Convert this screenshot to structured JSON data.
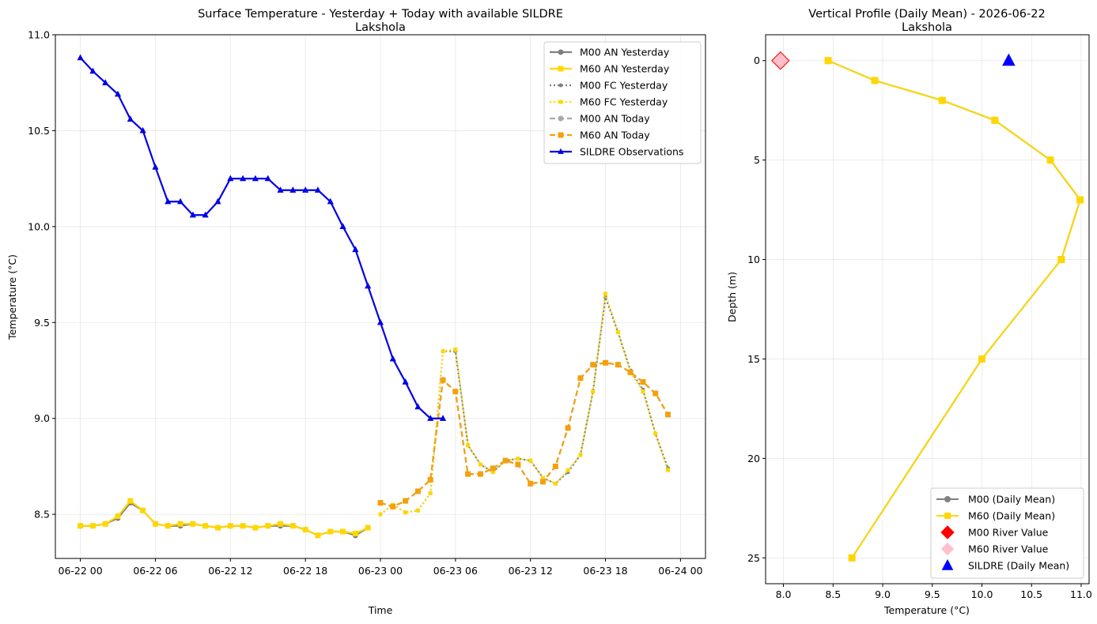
{
  "chart_data": [
    {
      "type": "line",
      "title": "Surface Temperature - Yesterday + Today with available SILDRE",
      "subtitle": "Lakshola",
      "xlabel": "Time",
      "ylabel": "Temperature (°C)",
      "x_unit": "hours since 06-22 00",
      "xlim": [
        -2.0,
        50.0
      ],
      "ylim": [
        8.27,
        11.0
      ],
      "x_ticks": [
        {
          "v": 0,
          "label": "06-22 00"
        },
        {
          "v": 6,
          "label": "06-22 06"
        },
        {
          "v": 12,
          "label": "06-22 12"
        },
        {
          "v": 18,
          "label": "06-22 18"
        },
        {
          "v": 24,
          "label": "06-23 00"
        },
        {
          "v": 30,
          "label": "06-23 06"
        },
        {
          "v": 36,
          "label": "06-23 12"
        },
        {
          "v": 42,
          "label": "06-23 18"
        },
        {
          "v": 48,
          "label": "06-24 00"
        }
      ],
      "y_ticks": [
        8.5,
        9.0,
        9.5,
        10.0,
        10.5,
        11.0
      ],
      "y_tick_labels": [
        "8.5",
        "9.0",
        "9.5",
        "10.0",
        "10.5",
        "11.0"
      ],
      "grid": true,
      "legend_position": "upper right",
      "series": [
        {
          "name": "M00 AN Yesterday",
          "color": "#808080",
          "dash": "solid",
          "marker": "circle",
          "x": [
            0,
            1,
            2,
            3,
            4,
            5,
            6,
            7,
            8,
            9,
            10,
            11,
            12,
            13,
            14,
            15,
            16,
            17,
            18,
            19,
            20,
            21,
            22,
            23
          ],
          "y": [
            8.44,
            8.44,
            8.45,
            8.48,
            8.56,
            8.52,
            8.45,
            8.44,
            8.44,
            8.45,
            8.44,
            8.43,
            8.44,
            8.44,
            8.43,
            8.44,
            8.44,
            8.44,
            8.42,
            8.39,
            8.41,
            8.41,
            8.39,
            8.43
          ]
        },
        {
          "name": "M60 AN Yesterday",
          "color": "#FFD700",
          "dash": "solid",
          "marker": "square",
          "x": [
            0,
            1,
            2,
            3,
            4,
            5,
            6,
            7,
            8,
            9,
            10,
            11,
            12,
            13,
            14,
            15,
            16,
            17,
            18,
            19,
            20,
            21,
            22,
            23
          ],
          "y": [
            8.44,
            8.44,
            8.45,
            8.49,
            8.57,
            8.52,
            8.45,
            8.44,
            8.45,
            8.45,
            8.44,
            8.43,
            8.44,
            8.44,
            8.43,
            8.44,
            8.45,
            8.44,
            8.42,
            8.39,
            8.41,
            8.41,
            8.4,
            8.43
          ]
        },
        {
          "name": "M00 FC Yesterday",
          "color": "#808080",
          "dash": "dotted",
          "marker": "circle",
          "x": [
            24,
            25,
            26,
            27,
            28,
            29,
            30,
            31,
            32,
            33,
            34,
            35,
            36,
            37,
            38,
            39,
            40,
            41,
            42,
            43,
            44,
            45,
            46,
            47
          ],
          "y": [
            8.5,
            8.55,
            8.51,
            8.52,
            8.61,
            9.35,
            9.35,
            8.86,
            8.76,
            8.72,
            8.78,
            8.79,
            8.78,
            8.69,
            8.66,
            8.72,
            8.81,
            9.14,
            9.63,
            9.45,
            9.25,
            9.15,
            8.92,
            8.74
          ]
        },
        {
          "name": "M60 FC Yesterday",
          "color": "#FFD700",
          "dash": "dotted",
          "marker": "square",
          "x": [
            24,
            25,
            26,
            27,
            28,
            29,
            30,
            31,
            32,
            33,
            34,
            35,
            36,
            37,
            38,
            39,
            40,
            41,
            42,
            43,
            44,
            45,
            46,
            47
          ],
          "y": [
            8.5,
            8.55,
            8.51,
            8.52,
            8.61,
            9.35,
            9.36,
            8.86,
            8.76,
            8.72,
            8.78,
            8.79,
            8.78,
            8.69,
            8.66,
            8.73,
            8.81,
            9.14,
            9.65,
            9.45,
            9.24,
            9.14,
            8.92,
            8.73
          ]
        },
        {
          "name": "M00 AN Today",
          "color": "#A9A9A9",
          "dash": "dashed",
          "marker": "circle",
          "x": [
            24,
            25,
            26,
            27,
            28,
            29,
            30,
            31,
            32,
            33,
            34,
            35,
            36,
            37,
            38,
            39,
            40,
            41,
            42,
            43,
            44,
            45,
            46,
            47
          ],
          "y": [
            8.56,
            8.54,
            8.57,
            8.62,
            8.68,
            9.2,
            9.14,
            8.71,
            8.71,
            8.74,
            8.78,
            8.76,
            8.66,
            8.67,
            8.75,
            8.95,
            9.21,
            9.28,
            9.29,
            9.28,
            9.24,
            9.19,
            9.13,
            9.02
          ]
        },
        {
          "name": "M60 AN Today",
          "color": "#F5A00F",
          "dash": "dashed",
          "marker": "square",
          "x": [
            24,
            25,
            26,
            27,
            28,
            29,
            30,
            31,
            32,
            33,
            34,
            35,
            36,
            37,
            38,
            39,
            40,
            41,
            42,
            43,
            44,
            45,
            46,
            47
          ],
          "y": [
            8.56,
            8.54,
            8.57,
            8.62,
            8.68,
            9.2,
            9.14,
            8.71,
            8.71,
            8.74,
            8.78,
            8.76,
            8.66,
            8.67,
            8.75,
            8.95,
            9.21,
            9.28,
            9.29,
            9.28,
            9.24,
            9.19,
            9.13,
            9.02
          ]
        },
        {
          "name": "SILDRE Observations",
          "color": "#0000E6",
          "dash": "solid",
          "marker": "triangle",
          "x": [
            0,
            1,
            2,
            3,
            4,
            5,
            6,
            7,
            8,
            9,
            10,
            11,
            12,
            13,
            14,
            15,
            16,
            17,
            18,
            19,
            20,
            21,
            22,
            23,
            24,
            25,
            26,
            27,
            28,
            29
          ],
          "y": [
            10.88,
            10.81,
            10.75,
            10.69,
            10.56,
            10.5,
            10.31,
            10.13,
            10.13,
            10.06,
            10.06,
            10.13,
            10.25,
            10.25,
            10.25,
            10.25,
            10.19,
            10.19,
            10.19,
            10.19,
            10.13,
            10.0,
            9.88,
            9.69,
            9.5,
            9.31,
            9.19,
            9.06,
            9.0,
            9.0
          ]
        }
      ]
    },
    {
      "type": "line",
      "title": "Vertical Profile (Daily Mean) - 2026-06-22",
      "subtitle": "Lakshola",
      "xlabel": "Temperature (°C)",
      "ylabel": "Depth (m)",
      "xlim": [
        7.82,
        11.08
      ],
      "ylim": [
        26.3,
        -1.3
      ],
      "y_inverted": true,
      "x_ticks": [
        8.0,
        8.5,
        9.0,
        9.5,
        10.0,
        10.5,
        11.0
      ],
      "x_tick_labels": [
        "8.0",
        "8.5",
        "9.0",
        "9.5",
        "10.0",
        "10.5",
        "11.0"
      ],
      "y_ticks": [
        0,
        5,
        10,
        15,
        20,
        25
      ],
      "y_tick_labels": [
        "0",
        "5",
        "10",
        "15",
        "20",
        "25"
      ],
      "grid": true,
      "legend_position": "lower right",
      "series": [
        {
          "name": "M00 (Daily Mean)",
          "color": "#808080",
          "marker": "circle",
          "temperature": [
            8.45,
            8.92,
            9.6,
            10.13,
            10.69,
            10.99,
            10.8,
            10.0,
            8.69
          ],
          "depth": [
            0,
            1,
            2,
            3,
            5,
            7,
            10,
            15,
            25
          ]
        },
        {
          "name": "M60 (Daily Mean)",
          "color": "#FFD700",
          "marker": "square",
          "temperature": [
            8.45,
            8.92,
            9.6,
            10.13,
            10.69,
            10.99,
            10.8,
            10.0,
            8.69
          ],
          "depth": [
            0,
            1,
            2,
            3,
            5,
            7,
            10,
            15,
            25
          ]
        }
      ],
      "points": [
        {
          "name": "M00 River Value",
          "color": "#FF0000",
          "marker": "diamond",
          "temperature": 7.97,
          "depth": 0
        },
        {
          "name": "M60 River Value",
          "color": "#FFC0CB",
          "marker": "diamond",
          "temperature": 7.97,
          "depth": 0
        },
        {
          "name": "SILDRE (Daily Mean)",
          "color": "#0000FF",
          "marker": "triangle",
          "temperature": 10.27,
          "depth": 0
        }
      ]
    }
  ]
}
